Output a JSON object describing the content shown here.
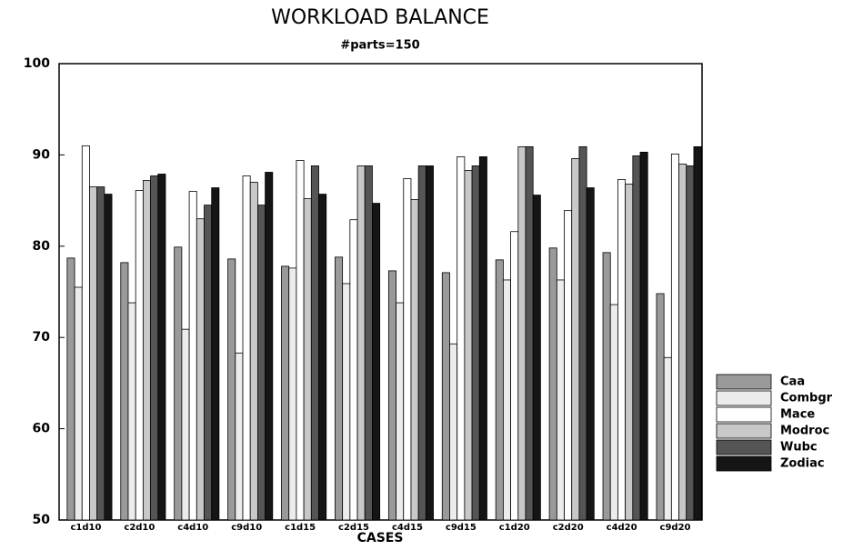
{
  "chart_data": {
    "type": "bar",
    "title": "WORKLOAD BALANCE",
    "subtitle": "#parts=150",
    "x_label": "CASES",
    "categories": [
      "c1d10",
      "c2d10",
      "c4d10",
      "c9d10",
      "c1d15",
      "c2d15",
      "c4d15",
      "c9d15",
      "c1d20",
      "c2d20",
      "c4d20",
      "c9d20"
    ],
    "series": [
      {
        "name": "Caa",
        "color": "#9a9a9a",
        "values": [
          78.7,
          78.2,
          79.9,
          78.6,
          77.8,
          78.8,
          77.3,
          77.1,
          78.5,
          79.8,
          79.3,
          74.8
        ]
      },
      {
        "name": "Combgr",
        "color": "#ececec",
        "values": [
          75.5,
          73.8,
          70.9,
          68.3,
          77.6,
          75.9,
          73.8,
          69.3,
          76.3,
          76.3,
          73.6,
          67.8
        ]
      },
      {
        "name": "Mace",
        "color": "#ffffff",
        "values": [
          91.0,
          86.1,
          86.0,
          87.7,
          89.4,
          82.9,
          87.4,
          89.8,
          81.6,
          83.9,
          87.3,
          90.1
        ]
      },
      {
        "name": "Modroc",
        "color": "#c8c8c8",
        "values": [
          86.5,
          87.2,
          83.0,
          87.0,
          85.2,
          88.8,
          85.1,
          88.3,
          90.9,
          89.6,
          86.8,
          89.0
        ]
      },
      {
        "name": "Wubc",
        "color": "#555555",
        "values": [
          86.5,
          87.7,
          84.5,
          84.5,
          88.8,
          88.8,
          88.8,
          88.8,
          90.9,
          90.9,
          89.9,
          88.8
        ]
      },
      {
        "name": "Zodiac",
        "color": "#151515",
        "values": [
          85.7,
          87.9,
          86.4,
          88.1,
          85.7,
          84.7,
          88.8,
          89.8,
          85.6,
          86.4,
          90.3,
          90.9
        ]
      }
    ],
    "ylim": [
      50,
      100
    ],
    "yticks": [
      50,
      60,
      70,
      80,
      90,
      100
    ],
    "legend": "right"
  }
}
